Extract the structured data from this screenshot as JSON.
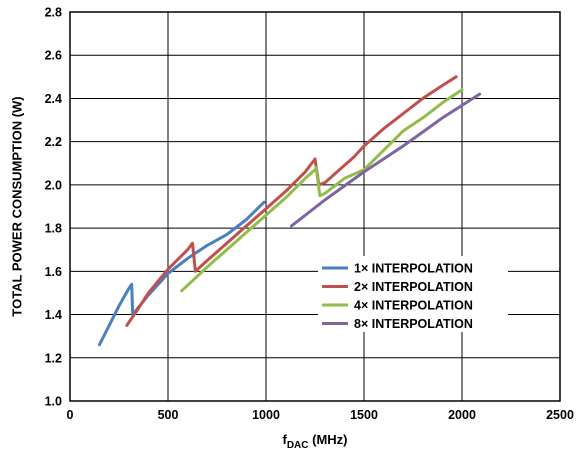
{
  "chart_data": {
    "type": "line",
    "xlabel": "f",
    "xlabel_sub": "DAC",
    "xlabel_unit": " (MHz)",
    "ylabel": "TOTAL POWER CONSUMPTION (W)",
    "xlim": [
      0,
      2500
    ],
    "ylim": [
      1.0,
      2.8
    ],
    "x_ticks": [
      0,
      500,
      1000,
      1500,
      2000,
      2500
    ],
    "x_tick_labels": [
      "0",
      "500",
      "1000",
      "1500",
      "2000",
      "2500"
    ],
    "y_ticks": [
      1.0,
      1.2,
      1.4,
      1.6,
      1.8,
      2.0,
      2.2,
      2.4,
      2.6,
      2.8
    ],
    "y_tick_labels": [
      "1.0",
      "1.2",
      "1.4",
      "1.6",
      "1.8",
      "2.0",
      "2.2",
      "2.4",
      "2.6",
      "2.8"
    ],
    "grid": true,
    "legend_position": "lower-right",
    "series": [
      {
        "name": "1× INTERPOLATION",
        "color": "#4a7fc1",
        "x": [
          150,
          200,
          250,
          300,
          315,
          320,
          400,
          500,
          600,
          700,
          800,
          900,
          990
        ],
        "y": [
          1.26,
          1.35,
          1.44,
          1.52,
          1.54,
          1.4,
          1.49,
          1.59,
          1.66,
          1.72,
          1.77,
          1.84,
          1.92
        ]
      },
      {
        "name": "2× INTERPOLATION",
        "color": "#c0504d",
        "x": [
          290,
          350,
          400,
          500,
          600,
          625,
          640,
          700,
          800,
          900,
          1000,
          1100,
          1200,
          1250,
          1270,
          1300,
          1400,
          1450,
          1500,
          1600,
          1700,
          1800,
          1900,
          1970
        ],
        "y": [
          1.35,
          1.43,
          1.5,
          1.61,
          1.7,
          1.73,
          1.6,
          1.65,
          1.73,
          1.81,
          1.89,
          1.97,
          2.06,
          2.12,
          2.0,
          2.01,
          2.09,
          2.13,
          2.18,
          2.26,
          2.33,
          2.4,
          2.46,
          2.5
        ]
      },
      {
        "name": "4× INTERPOLATION",
        "color": "#92bd4a",
        "x": [
          570,
          700,
          800,
          900,
          1000,
          1100,
          1200,
          1250,
          1255,
          1275,
          1300,
          1400,
          1500,
          1600,
          1700,
          1800,
          1900,
          2000
        ],
        "y": [
          1.51,
          1.62,
          1.7,
          1.78,
          1.86,
          1.94,
          2.03,
          2.07,
          2.08,
          1.95,
          1.96,
          2.03,
          2.07,
          2.16,
          2.25,
          2.31,
          2.38,
          2.44
        ]
      },
      {
        "name": "8× INTERPOLATION",
        "color": "#8064a2",
        "x": [
          1130,
          1300,
          1500,
          1700,
          1900,
          2090
        ],
        "y": [
          1.81,
          1.93,
          2.06,
          2.18,
          2.31,
          2.42
        ]
      }
    ]
  }
}
